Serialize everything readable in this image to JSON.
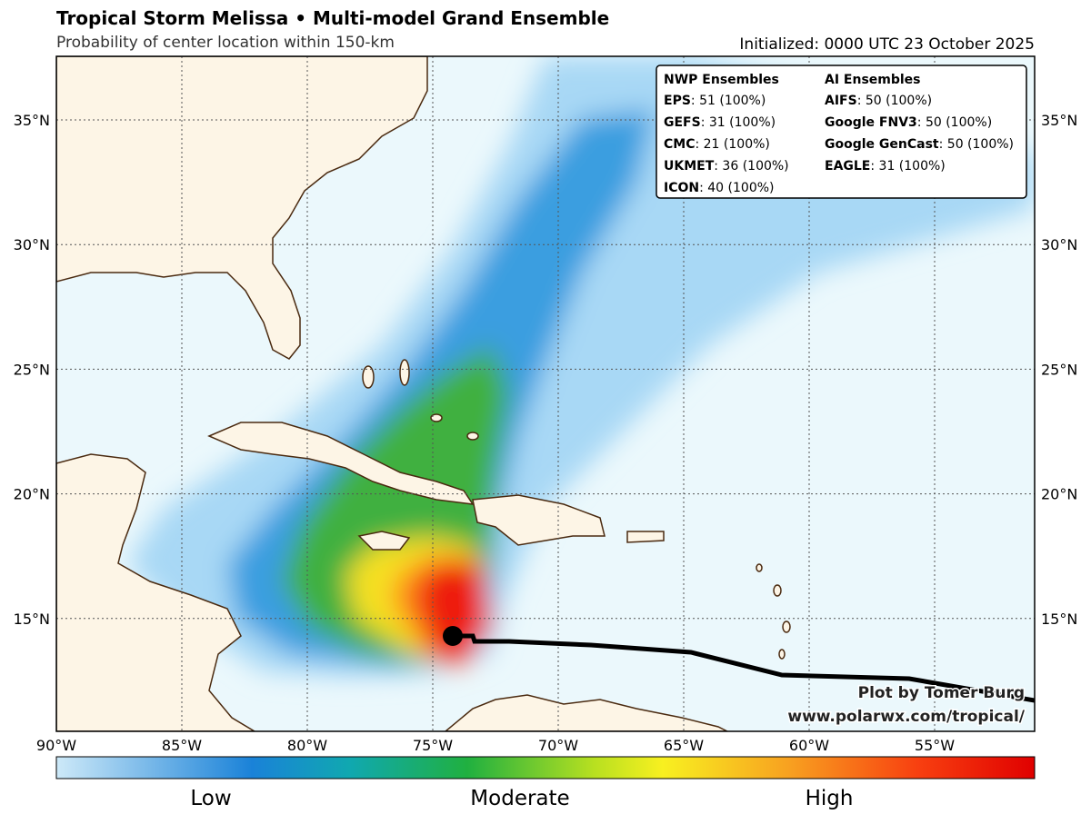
{
  "header": {
    "title": "Tropical Storm Melissa • Multi-model Grand Ensemble",
    "subtitle": "Probability of center location within 150-km",
    "initialized": "Initialized: 0000 UTC 23 October 2025"
  },
  "legend": {
    "nwp": {
      "title": "NWP Ensembles",
      "rows": [
        {
          "model": "EPS",
          "count": ": 51 (100%)"
        },
        {
          "model": "GEFS",
          "count": ": 31 (100%)"
        },
        {
          "model": "CMC",
          "count": ": 21 (100%)"
        },
        {
          "model": "UKMET",
          "count": ": 36 (100%)"
        },
        {
          "model": "ICON",
          "count": ": 40 (100%)"
        }
      ]
    },
    "ai": {
      "title": "AI Ensembles",
      "rows": [
        {
          "model": "AIFS",
          "count": ": 50 (100%)"
        },
        {
          "model": "Google FNV3",
          "count": ": 50 (100%)"
        },
        {
          "model": "Google GenCast",
          "count": ": 50 (100%)"
        },
        {
          "model": "EAGLE",
          "count": ": 31 (100%)"
        }
      ]
    }
  },
  "lat_labels": [
    "35°N",
    "30°N",
    "25°N",
    "20°N",
    "15°N"
  ],
  "lon_labels": [
    "90°W",
    "85°W",
    "80°W",
    "75°W",
    "70°W",
    "65°W",
    "60°W",
    "55°W"
  ],
  "colorbar": {
    "labels": [
      "Low",
      "Moderate",
      "High"
    ]
  },
  "credit": {
    "line1": "Plot by Tomer Burg",
    "line2": "www.polarwx.com/tropical/"
  }
}
